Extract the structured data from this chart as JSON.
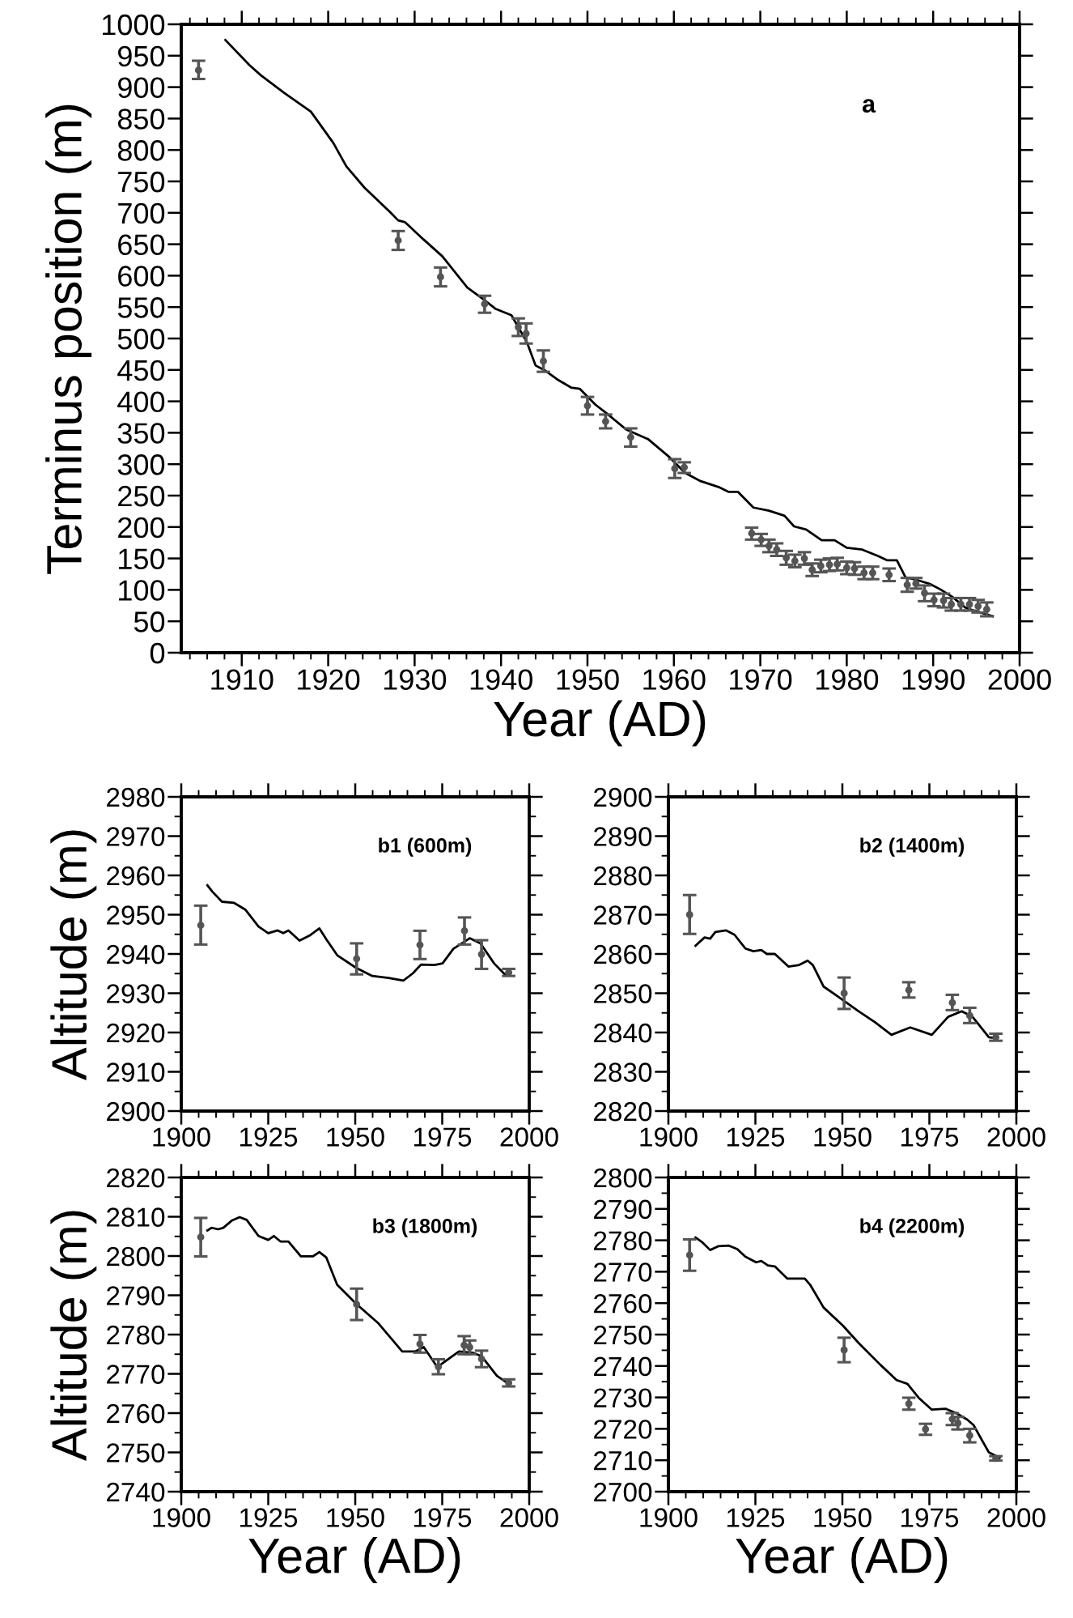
{
  "chart_data": [
    {
      "type": "line",
      "xlabel": "Year (AD)",
      "ylabel": "Terminus position (m)",
      "annotations": [
        "a"
      ],
      "xlim": [
        1903,
        2000
      ],
      "xticks": [
        1910,
        1920,
        1930,
        1940,
        1950,
        1960,
        1970,
        1980,
        1990,
        2000
      ],
      "ylim": [
        0,
        1000
      ],
      "yticks": [
        0,
        50,
        100,
        150,
        200,
        250,
        300,
        350,
        400,
        450,
        500,
        550,
        600,
        650,
        700,
        750,
        800,
        850,
        900,
        950,
        1000
      ],
      "series": [
        {
          "color": "#000000",
          "x": [
            1908.1,
            1910.9,
            1912.2,
            1914.9,
            1918.0,
            1920.6,
            1922.1,
            1924.2,
            1927.1,
            1928.1,
            1928.9,
            1931.0,
            1933.2,
            1936.1,
            1937.9,
            1939.4,
            1941.2,
            1943.0,
            1944.0,
            1945.1,
            1946.5,
            1948.1,
            1949.1,
            1950.9,
            1952.3,
            1954.5,
            1957.0,
            1959.5,
            1961.3,
            1963.1,
            1965.3,
            1966.3,
            1967.4,
            1969.2,
            1971.0,
            1972.8,
            1973.9,
            1975.3,
            1977.1,
            1978.6,
            1980.0,
            1981.8,
            1983.6,
            1984.7,
            1985.8,
            1986.8,
            1988.3,
            1989.7,
            1990.8,
            1992.2,
            1993.7,
            1994.7,
            1996.9
          ],
          "values": [
            975,
            935,
            919,
            891,
            861,
            811,
            774,
            740,
            702,
            688,
            685,
            658,
            631,
            581,
            563,
            547,
            537,
            494,
            457,
            449,
            435,
            422,
            420,
            395,
            380,
            355,
            340,
            311,
            286,
            273,
            263,
            256,
            256,
            231,
            226,
            218,
            201,
            196,
            179,
            179,
            167,
            164,
            154,
            147,
            147,
            120,
            115,
            109,
            101,
            89,
            72,
            67,
            58
          ]
        },
        {
          "type": "scatter",
          "marker": "circle",
          "color": "#555555",
          "x": [
            1905.0,
            1928.1,
            1933.0,
            1938.1,
            1942.0,
            1942.9,
            1944.9,
            1950.0,
            1952.1,
            1955.0,
            1960.1,
            1961.2,
            1969.0,
            1970.1,
            1971.0,
            1971.9,
            1973.0,
            1974.0,
            1975.1,
            1976.0,
            1977.0,
            1978.0,
            1978.9,
            1980.0,
            1980.9,
            1982.0,
            1983.0,
            1984.9,
            1987.0,
            1988.0,
            1989.0,
            1990.1,
            1991.2,
            1992.1,
            1993.2,
            1994.2,
            1995.2,
            1996.2
          ],
          "values": [
            927,
            656,
            598,
            555,
            518,
            508,
            464,
            393,
            368,
            343,
            293,
            295,
            190,
            180,
            170,
            164,
            151,
            146,
            150,
            132,
            138,
            140,
            141,
            135,
            134,
            127,
            127,
            124,
            108,
            110,
            95,
            84,
            83,
            77,
            77,
            77,
            74,
            69
          ],
          "errors": [
            [
              913,
              942
            ],
            [
              641,
              671
            ],
            [
              583,
              613
            ],
            [
              541,
              568
            ],
            [
              504,
              532
            ],
            [
              492,
              524
            ],
            [
              447,
              481
            ],
            [
              379,
              407
            ],
            [
              357,
              379
            ],
            [
              328,
              357
            ],
            [
              278,
              308
            ],
            [
              286,
              303
            ],
            [
              180,
              199
            ],
            [
              170,
              189
            ],
            [
              160,
              180
            ],
            [
              154,
              174
            ],
            [
              140,
              162
            ],
            [
              136,
              156
            ],
            [
              140,
              160
            ],
            [
              122,
              142
            ],
            [
              128,
              148
            ],
            [
              130,
              150
            ],
            [
              131,
              151
            ],
            [
              125,
              145
            ],
            [
              124,
              144
            ],
            [
              117,
              137
            ],
            [
              117,
              137
            ],
            [
              114,
              134
            ],
            [
              97,
              119
            ],
            [
              102,
              119
            ],
            [
              82,
              107
            ],
            [
              74,
              94
            ],
            [
              72,
              94
            ],
            [
              67,
              87
            ],
            [
              67,
              87
            ],
            [
              67,
              87
            ],
            [
              64,
              84
            ],
            [
              58,
              80
            ]
          ]
        }
      ]
    },
    {
      "type": "line",
      "ylabel": "Altitude (m)",
      "annotations": [
        "b1 (600m)"
      ],
      "xlim": [
        1900,
        2000
      ],
      "xticks": [
        1900,
        1925,
        1950,
        1975,
        2000
      ],
      "ylim": [
        2900,
        2980
      ],
      "yticks": [
        2900,
        2910,
        2920,
        2930,
        2940,
        2950,
        2960,
        2970,
        2980
      ],
      "series": [
        {
          "color": "#000000",
          "x": [
            1907.5,
            1909.0,
            1911.7,
            1915.2,
            1918.4,
            1922.2,
            1925.0,
            1927.7,
            1929.3,
            1930.8,
            1934.0,
            1937.1,
            1939.7,
            1941.7,
            1944.9,
            1950.2,
            1954.9,
            1959.6,
            1963.8,
            1966.6,
            1968.9,
            1972.8,
            1975.1,
            1978.2,
            1982.9,
            1986.0,
            1989.9,
            1993.0,
            1994.6
          ],
          "values": [
            2957.5,
            2955.8,
            2953.3,
            2953.0,
            2951.3,
            2947.0,
            2945.3,
            2946.0,
            2945.3,
            2946.0,
            2943.4,
            2944.8,
            2946.5,
            2943.7,
            2939.6,
            2936.5,
            2934.4,
            2933.9,
            2933.2,
            2935.1,
            2937.3,
            2937.2,
            2937.6,
            2941.3,
            2944.0,
            2942.7,
            2937.6,
            2934.8,
            2934.8
          ]
        },
        {
          "type": "scatter",
          "marker": "circle",
          "color": "#555555",
          "x": [
            1905.6,
            1950.4,
            1968.6,
            1981.4,
            1986.3,
            1994.1
          ],
          "values": [
            2947.3,
            2938.8,
            2942.3,
            2945.9,
            2939.9,
            2935.3
          ],
          "errors": [
            [
              2942.4,
              2952.3
            ],
            [
              2934.8,
              2942.7
            ],
            [
              2938.7,
              2945.9
            ],
            [
              2942.4,
              2949.3
            ],
            [
              2936.2,
              2943.5
            ],
            [
              2934.4,
              2936.2
            ]
          ]
        }
      ]
    },
    {
      "type": "line",
      "annotations": [
        "b2 (1400m)"
      ],
      "xlim": [
        1900,
        2000
      ],
      "xticks": [
        1900,
        1925,
        1950,
        1975,
        2000
      ],
      "ylim": [
        2820,
        2900
      ],
      "yticks": [
        2820,
        2830,
        2840,
        2850,
        2860,
        2870,
        2880,
        2890,
        2900
      ],
      "series": [
        {
          "color": "#000000",
          "x": [
            1907.8,
            1910.4,
            1912.0,
            1913.5,
            1916.6,
            1919.0,
            1922.1,
            1924.4,
            1926.7,
            1928.3,
            1930.6,
            1934.5,
            1937.6,
            1940.0,
            1941.5,
            1944.6,
            1948.5,
            1954.7,
            1959.4,
            1964.1,
            1969.5,
            1975.7,
            1980.4,
            1984.3,
            1987.4,
            1992.1,
            1994.4
          ],
          "values": [
            2862.1,
            2864.2,
            2863.9,
            2865.6,
            2866.0,
            2864.9,
            2861.4,
            2860.7,
            2861.0,
            2860.0,
            2860.0,
            2856.8,
            2857.2,
            2858.3,
            2857.2,
            2851.7,
            2849.3,
            2845.4,
            2842.6,
            2839.4,
            2841.3,
            2839.4,
            2844.0,
            2845.4,
            2844.0,
            2838.8,
            2838.5
          ]
        },
        {
          "type": "scatter",
          "marker": "circle",
          "color": "#555555",
          "x": [
            1906.1,
            1950.5,
            1969.1,
            1981.6,
            1986.6,
            1994.1
          ],
          "values": [
            2870.0,
            2850.0,
            2850.8,
            2847.6,
            2844.3,
            2838.8
          ],
          "errors": [
            [
              2865.1,
              2875.0
            ],
            [
              2846.0,
              2854.0
            ],
            [
              2848.9,
              2852.8
            ],
            [
              2845.7,
              2849.6
            ],
            [
              2842.4,
              2846.3
            ],
            [
              2837.9,
              2839.7
            ]
          ]
        }
      ]
    },
    {
      "type": "line",
      "xlabel": "Year (AD)",
      "ylabel": "Altitude (m)",
      "annotations": [
        "b3 (1800m)"
      ],
      "xlim": [
        1900,
        2000
      ],
      "xticks": [
        1900,
        1925,
        1950,
        1975,
        2000
      ],
      "ylim": [
        2740,
        2820
      ],
      "yticks": [
        2740,
        2750,
        2760,
        2770,
        2780,
        2790,
        2800,
        2810,
        2820
      ],
      "series": [
        {
          "color": "#000000",
          "x": [
            1907.5,
            1908.7,
            1910.6,
            1912.1,
            1914.5,
            1916.8,
            1918.8,
            1922.2,
            1925.0,
            1926.6,
            1928.5,
            1930.8,
            1934.4,
            1937.8,
            1939.7,
            1941.7,
            1944.8,
            1950.2,
            1956.5,
            1963.5,
            1967.3,
            1969.7,
            1973.6,
            1975.1,
            1979.8,
            1983.7,
            1986.3,
            1990.7,
            1993.8
          ],
          "values": [
            2806.5,
            2807.2,
            2806.8,
            2807.2,
            2809.0,
            2809.9,
            2809.2,
            2805.1,
            2804.1,
            2805.1,
            2803.7,
            2803.7,
            2799.9,
            2799.9,
            2801.0,
            2799.6,
            2792.7,
            2787.9,
            2783.0,
            2775.7,
            2775.7,
            2776.8,
            2771.7,
            2772.7,
            2775.7,
            2775.4,
            2774.5,
            2769.5,
            2767.6
          ]
        },
        {
          "type": "scatter",
          "marker": "circle",
          "color": "#555555",
          "x": [
            1905.6,
            1950.4,
            1968.6,
            1973.9,
            1981.3,
            1982.9,
            1986.3,
            1994.1
          ],
          "values": [
            2804.8,
            2787.7,
            2777.6,
            2771.8,
            2777.3,
            2776.8,
            2773.8,
            2767.7
          ],
          "errors": [
            [
              2799.9,
              2809.7
            ],
            [
              2783.7,
              2791.7
            ],
            [
              2775.4,
              2779.9
            ],
            [
              2769.9,
              2773.7
            ],
            [
              2775.0,
              2779.6
            ],
            [
              2775.0,
              2778.5
            ],
            [
              2771.7,
              2775.9
            ],
            [
              2766.8,
              2768.6
            ]
          ]
        }
      ]
    },
    {
      "type": "line",
      "xlabel": "Year (AD)",
      "annotations": [
        "b4 (2200m)"
      ],
      "xlim": [
        1900,
        2000
      ],
      "xticks": [
        1900,
        1925,
        1950,
        1975,
        2000
      ],
      "ylim": [
        2700,
        2800
      ],
      "yticks": [
        2700,
        2710,
        2720,
        2730,
        2740,
        2750,
        2760,
        2770,
        2780,
        2790,
        2800
      ],
      "series": [
        {
          "color": "#000000",
          "x": [
            1907.8,
            1909.6,
            1912.0,
            1914.3,
            1917.4,
            1919.8,
            1922.1,
            1925.2,
            1926.7,
            1928.6,
            1930.6,
            1934.2,
            1939.2,
            1940.7,
            1944.6,
            1950.1,
            1954.7,
            1961.0,
            1965.6,
            1968.7,
            1971.9,
            1975.7,
            1979.6,
            1982.7,
            1985.8,
            1987.7,
            1989.7,
            1992.1,
            1995.2
          ],
          "values": [
            2780.9,
            2779.5,
            2776.9,
            2778.1,
            2778.3,
            2777.2,
            2774.8,
            2773.0,
            2773.4,
            2772.0,
            2771.7,
            2767.8,
            2767.8,
            2765.9,
            2758.6,
            2752.9,
            2747.3,
            2740.3,
            2735.5,
            2734.3,
            2729.9,
            2726.1,
            2726.4,
            2725.0,
            2723.0,
            2721.2,
            2717.2,
            2712.5,
            2710.8
          ]
        },
        {
          "type": "scatter",
          "marker": "circle",
          "color": "#555555",
          "x": [
            1906.1,
            1950.5,
            1969.1,
            1973.9,
            1981.6,
            1983.2,
            1986.6,
            1994.1
          ],
          "values": [
            2775.3,
            2745.1,
            2728.0,
            2719.9,
            2723.1,
            2721.8,
            2717.9,
            2710.6
          ],
          "errors": [
            [
              2770.3,
              2780.3
            ],
            [
              2741.2,
              2749.0
            ],
            [
              2726.1,
              2729.9
            ],
            [
              2718.1,
              2721.6
            ],
            [
              2721.2,
              2725.0
            ],
            [
              2719.8,
              2723.8
            ],
            [
              2715.7,
              2720.0
            ],
            [
              2709.9,
              2711.3
            ]
          ]
        }
      ]
    }
  ]
}
